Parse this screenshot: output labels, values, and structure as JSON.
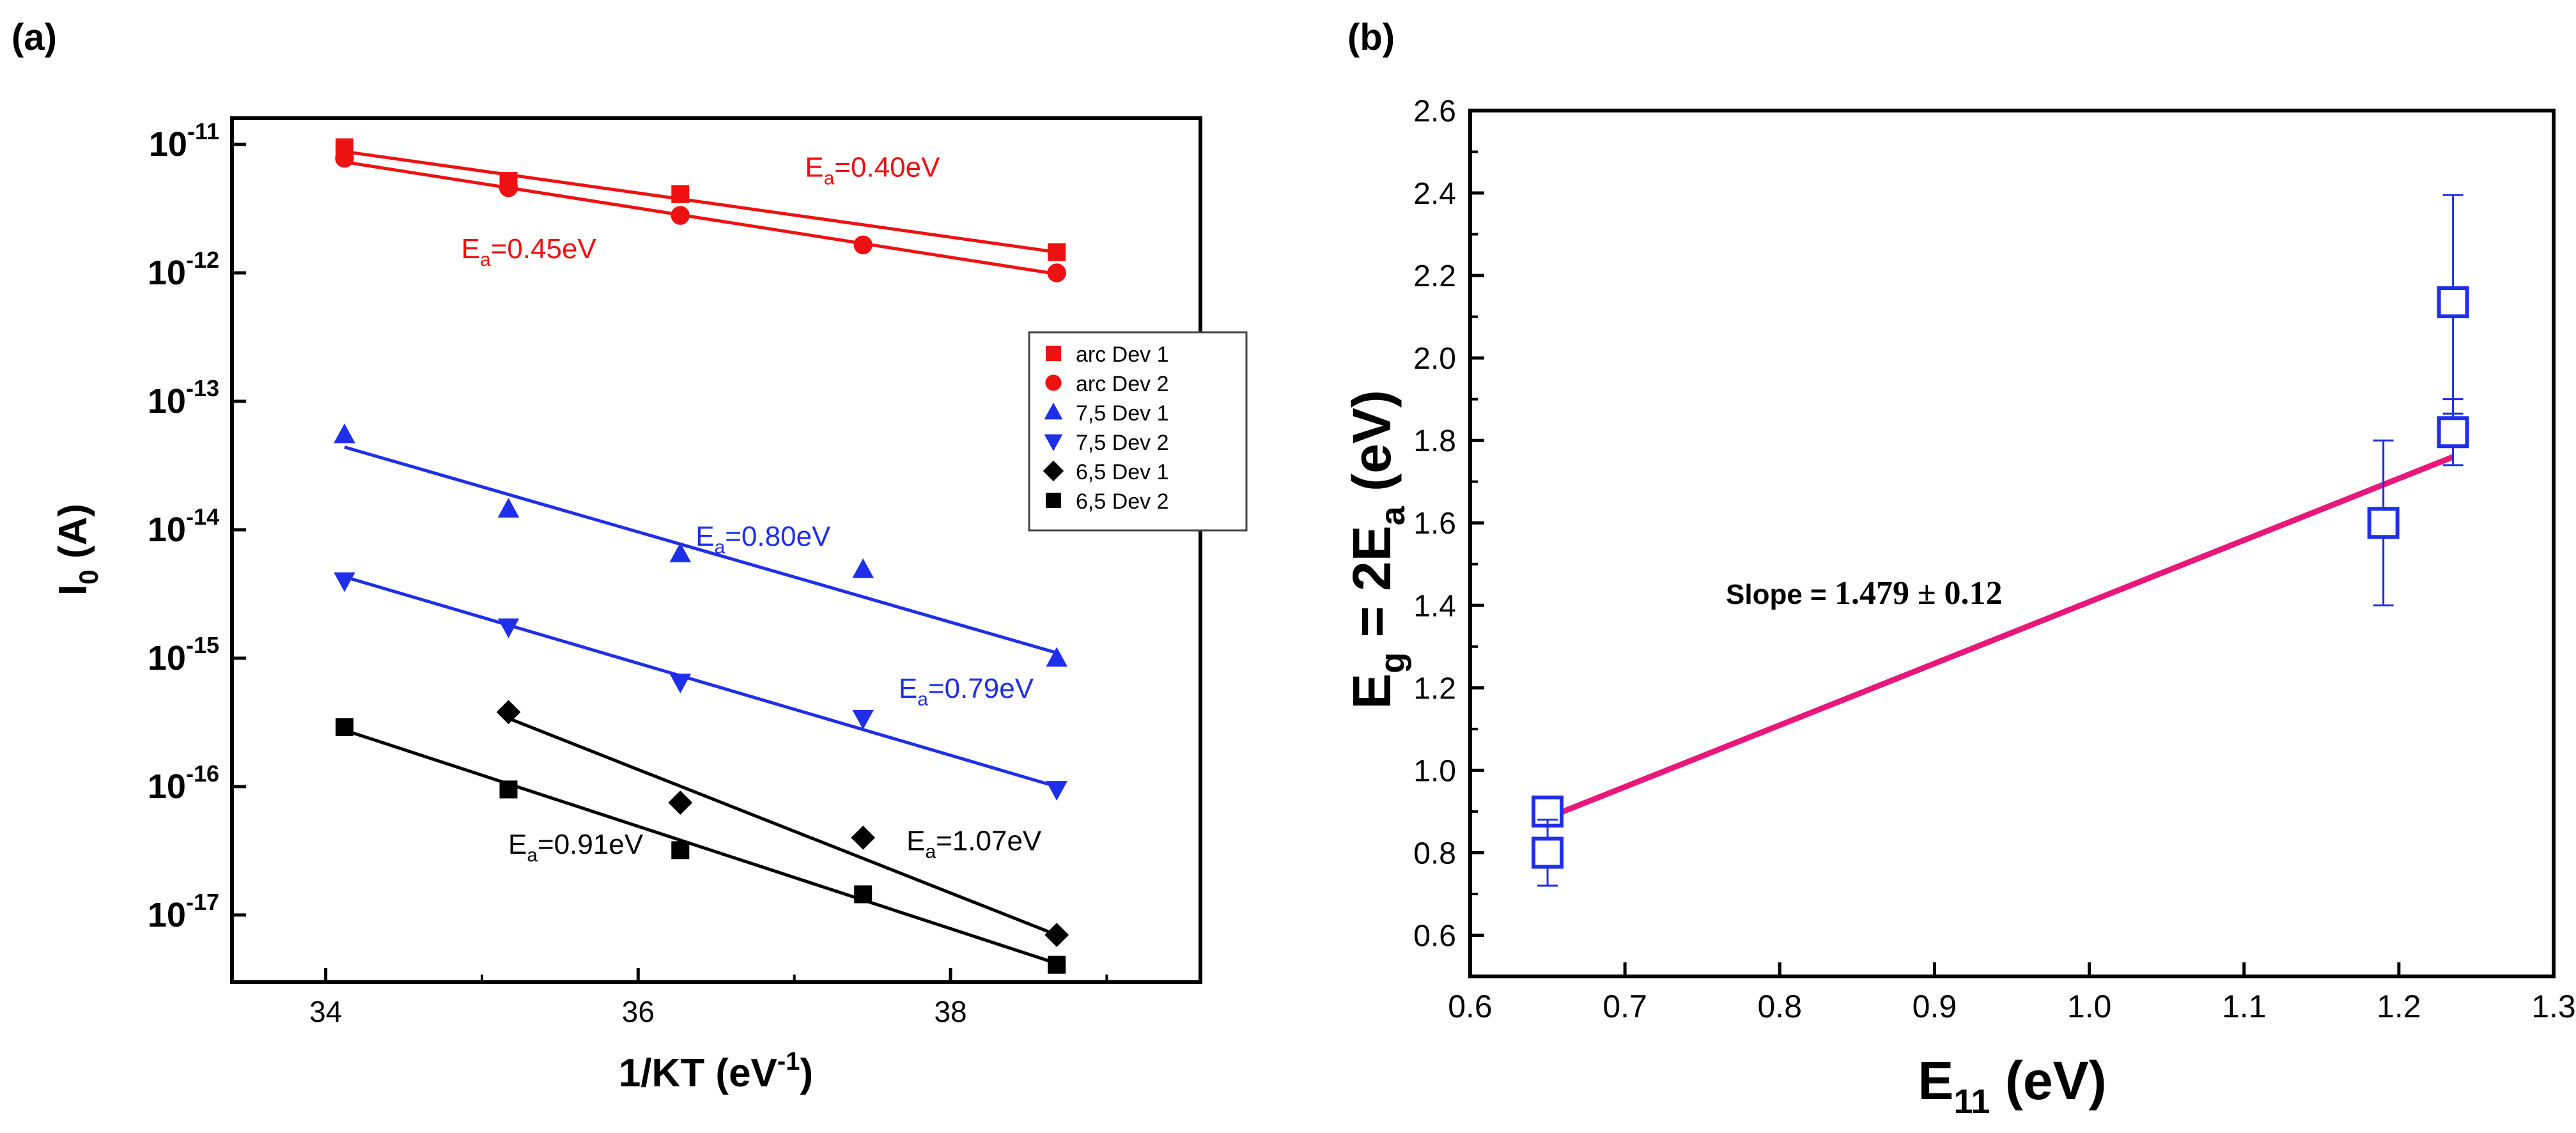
{
  "panels": {
    "a": {
      "label": "(a)"
    },
    "b": {
      "label": "(b)"
    }
  },
  "chart_data": [
    {
      "type": "scatter",
      "panel": "(a)",
      "xlabel": "1/KT (eV",
      "xlabel_sup": "-1",
      "xlabel_tail": ")",
      "ylabel": "I",
      "ylabel_sub": "0",
      "ylabel_tail": " (A)",
      "xlim": [
        33.4,
        39.6
      ],
      "ylim": [
        3e-18,
        1.6e-11
      ],
      "yscale": "log",
      "xticks": [
        {
          "value": 34,
          "label": "34"
        },
        {
          "value": 36,
          "label": "36"
        },
        {
          "value": 38,
          "label": "38"
        }
      ],
      "yticks": [
        {
          "value": 1e-11,
          "base": "10",
          "exp": "-11"
        },
        {
          "value": 1e-12,
          "base": "10",
          "exp": "-12"
        },
        {
          "value": 1e-13,
          "base": "10",
          "exp": "-13"
        },
        {
          "value": 1e-14,
          "base": "10",
          "exp": "-14"
        },
        {
          "value": 1e-15,
          "base": "10",
          "exp": "-15"
        },
        {
          "value": 1e-16,
          "base": "10",
          "exp": "-16"
        },
        {
          "value": 1e-17,
          "base": "10",
          "exp": "-17"
        }
      ],
      "legend_position": "right-upper",
      "series": [
        {
          "name": "arc Dev 1",
          "color": "#ee1111",
          "marker": "square",
          "x": [
            34.12,
            35.17,
            36.27,
            37.44,
            38.68
          ],
          "y": [
            9.5e-12,
            5.2e-12,
            4.1e-12,
            null,
            1.45e-12
          ],
          "fit": {
            "x": [
              34.12,
              38.68
            ],
            "y": [
              8.8e-12,
              1.45e-12
            ]
          }
        },
        {
          "name": "arc Dev 2",
          "color": "#ee1111",
          "marker": "circle",
          "x": [
            34.12,
            35.17,
            36.27,
            37.44,
            38.68
          ],
          "y": [
            7.8e-12,
            4.6e-12,
            2.8e-12,
            1.65e-12,
            1e-12
          ],
          "fit": {
            "x": [
              34.12,
              38.68
            ],
            "y": [
              7.3e-12,
              9.8e-13
            ]
          }
        },
        {
          "name": "7,5 Dev 1",
          "color": "#1f2ee8",
          "marker": "triangle-up",
          "x": [
            34.12,
            35.17,
            36.27,
            37.44,
            38.68
          ],
          "y": [
            5.5e-14,
            1.45e-14,
            6.5e-15,
            4.9e-15,
            1e-15
          ],
          "fit": {
            "x": [
              34.12,
              38.68
            ],
            "y": [
              4.4e-14,
              1.1e-15
            ]
          }
        },
        {
          "name": "7,5 Dev 2",
          "color": "#1f2ee8",
          "marker": "triangle-down",
          "x": [
            34.12,
            35.17,
            36.27,
            37.44,
            38.68
          ],
          "y": [
            4e-15,
            1.75e-15,
            6.5e-16,
            3.4e-16,
            9.5e-17
          ],
          "fit": {
            "x": [
              34.12,
              38.68
            ],
            "y": [
              4.3e-15,
              1e-16
            ]
          }
        },
        {
          "name": "6,5 Dev 1",
          "color": "#000000",
          "marker": "diamond",
          "x": [
            35.17,
            36.27,
            37.44,
            38.68
          ],
          "y": [
            3.8e-16,
            7.5e-17,
            4e-17,
            7e-18
          ],
          "fit": {
            "x": [
              35.17,
              38.68
            ],
            "y": [
              3.4e-16,
              7e-18
            ]
          }
        },
        {
          "name": "6,5 Dev 2",
          "color": "#000000",
          "marker": "square",
          "x": [
            34.12,
            35.17,
            36.27,
            37.44,
            38.68
          ],
          "y": [
            2.9e-16,
            9.5e-17,
            3.2e-17,
            1.45e-17,
            4.1e-18
          ],
          "fit": {
            "x": [
              34.12,
              38.68
            ],
            "y": [
              2.75e-16,
              4.2e-18
            ]
          }
        }
      ],
      "annotations": [
        {
          "main": "E",
          "sub": "a",
          "rest": "=0.40eV",
          "color": "#ee1111",
          "at": [
            37.5,
            5.6e-12
          ]
        },
        {
          "main": "E",
          "sub": "a",
          "rest": "=0.45eV",
          "color": "#ee1111",
          "at": [
            35.3,
            1.3e-12
          ]
        },
        {
          "main": "E",
          "sub": "a",
          "rest": "=0.80eV",
          "color": "#1f2ee8",
          "at": [
            36.8,
            7.5e-15
          ]
        },
        {
          "main": "E",
          "sub": "a",
          "rest": "=0.79eV",
          "color": "#1f2ee8",
          "at": [
            38.1,
            4.9e-16
          ]
        },
        {
          "main": "E",
          "sub": "a",
          "rest": "=0.91eV",
          "color": "#000000",
          "at": [
            35.6,
            3e-17
          ]
        },
        {
          "main": "E",
          "sub": "a",
          "rest": "=1.07eV",
          "color": "#000000",
          "at": [
            38.15,
            3.2e-17
          ]
        }
      ]
    },
    {
      "type": "scatter",
      "panel": "(b)",
      "xlabel": "E",
      "xlabel_sub": "11",
      "xlabel_tail": " (eV)",
      "ylabel_parts": [
        "E",
        "g",
        " = 2E",
        "a",
        " (eV)"
      ],
      "xlim": [
        0.6,
        1.3
      ],
      "ylim": [
        0.5,
        2.6
      ],
      "xticks": [
        "0.6",
        "0.7",
        "0.8",
        "0.9",
        "1.0",
        "1.1",
        "1.2",
        "1.3"
      ],
      "yticks": [
        "0.6",
        "0.8",
        "1.0",
        "1.2",
        "1.4",
        "1.6",
        "1.8",
        "2.0",
        "2.2",
        "2.4",
        "2.6"
      ],
      "series": [
        {
          "color": "#1f2ee8",
          "marker": "open-square",
          "x": [
            0.65,
            0.65,
            1.19,
            1.235,
            1.235
          ],
          "y": [
            0.9,
            0.8,
            1.6,
            1.82,
            2.135
          ],
          "err_low": [
            0.02,
            0.08,
            0.2,
            0.08,
            0.27
          ],
          "err_high": [
            0.02,
            0.08,
            0.2,
            0.08,
            0.26
          ]
        }
      ],
      "fit": {
        "color": "#e8177a",
        "x": [
          0.65,
          1.235
        ],
        "y": [
          0.885,
          1.76
        ]
      },
      "annotation": {
        "text": "Slope = ",
        "math": "1.479 ± 0.12",
        "at": [
          0.75,
          1.47
        ]
      }
    }
  ]
}
